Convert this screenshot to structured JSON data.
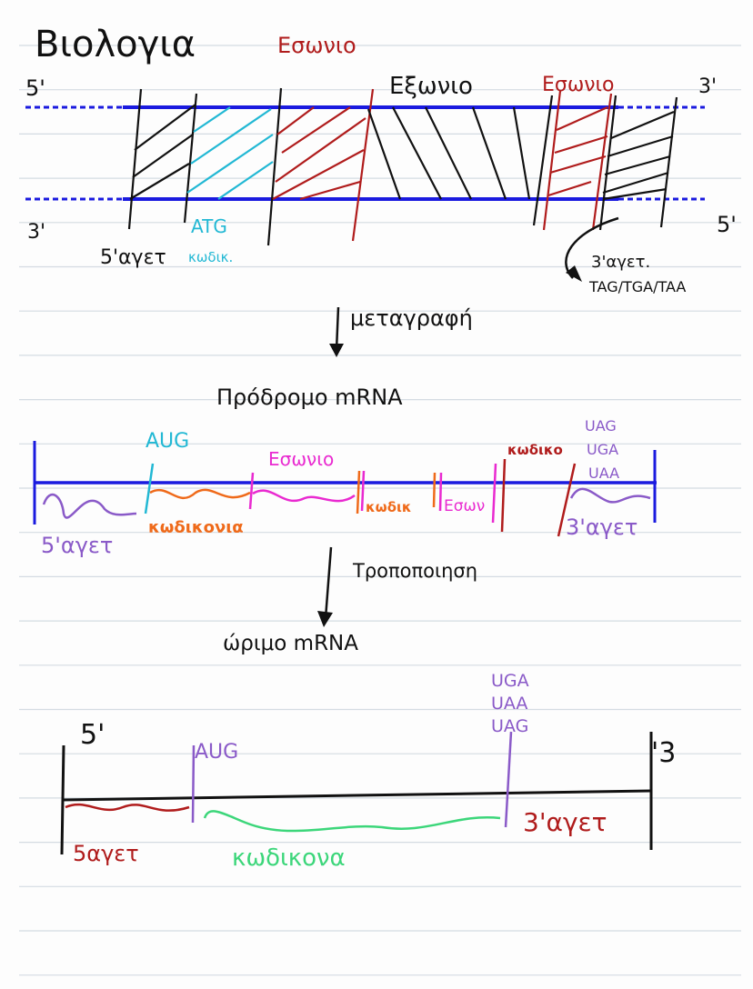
{
  "title": "Βιολογια",
  "colors": {
    "ink": "#111111",
    "blue": "#1a1adf",
    "cyan": "#22b8d4",
    "red": "#b01c1c",
    "orange": "#ef6a1a",
    "magenta": "#e92ad0",
    "purple": "#8a5ac8",
    "green": "#3cd67a",
    "rule": "#d4dbe2"
  },
  "dna": {
    "top_left": "5'",
    "top_right": "3'",
    "bottom_left": "3'",
    "bottom_right": "5'",
    "intron1": "Εσωνιο",
    "exon": "Εξωνιο",
    "intron2": "Εσωνιο",
    "atg": "ATG",
    "utr5": "5'αγετ",
    "coding": "κωδικ.",
    "utr3": "3'αγετ.",
    "stop_codons": "TAG/TGA/TAA"
  },
  "step1": "μεταγραφή",
  "pre_mrna": {
    "title": "Πρόδρομο mRNA",
    "aug": "AUG",
    "intron": "Εσωνιο",
    "coding_label": "κωδικονια",
    "coding_short": "κωδικ",
    "intron_short": "Εσων",
    "coding_end": "κωδικο",
    "stop1": "UAG",
    "stop2": "UGA",
    "stop3": "UAA",
    "utr5": "5'αγετ",
    "utr3": "3'αγετ"
  },
  "step2": "Τροποποιηση",
  "mature_mrna": {
    "title": "ώριμο mRNA",
    "left": "5'",
    "right": "'3",
    "aug": "AUG",
    "stop1": "UGA",
    "stop2": "UAA",
    "stop3": "UAG",
    "utr5": "5αγετ",
    "coding": "κωδικονα",
    "utr3": "3'αγετ"
  }
}
